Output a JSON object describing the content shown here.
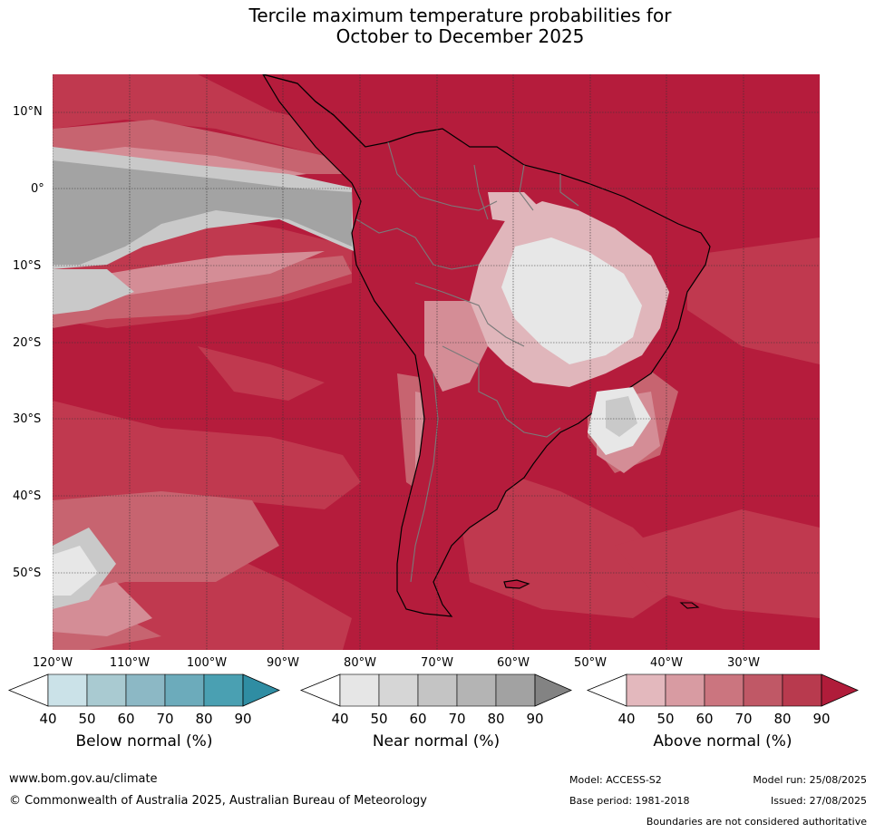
{
  "title": {
    "line1": "Tercile maximum temperature probabilities for",
    "line2": "October to December 2025"
  },
  "map": {
    "lat_labels": [
      "10°N",
      "0°",
      "10°S",
      "20°S",
      "30°S",
      "40°S",
      "50°S"
    ],
    "lon_labels": [
      "120°W",
      "110°W",
      "100°W",
      "90°W",
      "80°W",
      "70°W",
      "60°W",
      "50°W",
      "40°W",
      "30°W"
    ],
    "colors": {
      "ocean_above": "#b51c3c",
      "above_80": "#c0394f",
      "above_70": "#c76470",
      "above_60": "#d48d96",
      "above_50": "#e0b6bb",
      "near_light": "#e7e7e7",
      "near_mid": "#c9c9c9",
      "near_dark": "#a3a3a3"
    }
  },
  "legends": [
    {
      "name": "Below normal (%)",
      "ticks": [
        "40",
        "50",
        "60",
        "70",
        "80",
        "90"
      ],
      "colors": [
        "#ffffff",
        "#cbe2e8",
        "#a9cad1",
        "#8cb8c5",
        "#6cabbb",
        "#4aa0b2",
        "#2f8da3"
      ]
    },
    {
      "name": "Near normal (%)",
      "ticks": [
        "40",
        "50",
        "60",
        "70",
        "80",
        "90"
      ],
      "colors": [
        "#ffffff",
        "#e6e6e6",
        "#d6d6d6",
        "#c4c4c4",
        "#b4b4b4",
        "#a2a2a2",
        "#838383"
      ]
    },
    {
      "name": "Above normal (%)",
      "ticks": [
        "40",
        "50",
        "60",
        "70",
        "80",
        "90"
      ],
      "colors": [
        "#ffffff",
        "#e3b8bd",
        "#d89ba2",
        "#cb757f",
        "#c05866",
        "#b83a4e",
        "#b01c3a"
      ]
    }
  ],
  "footer": {
    "website": "www.bom.gov.au/climate",
    "copyright": "© Commonwealth of Australia 2025, Australian Bureau of Meteorology",
    "model": "Model: ACCESS-S2",
    "base_period": "Base period: 1981-2018",
    "model_run": "Model run: 25/08/2025",
    "issued": "Issued: 27/08/2025",
    "disclaimer": "Boundaries are not considered authoritative"
  }
}
